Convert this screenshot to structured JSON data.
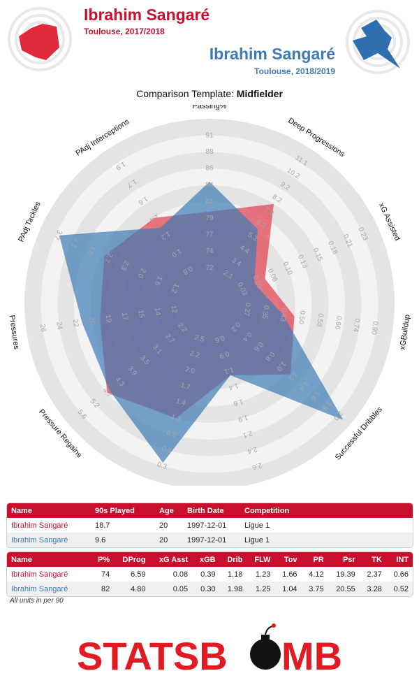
{
  "header": {
    "player1_name": "Ibrahim Sangaré",
    "player1_sub": "Toulouse, 2017/2018",
    "player2_name": "Ibrahim Sangaré",
    "player2_sub": "Toulouse, 2018/2019",
    "template_prefix": "Comparison Template: ",
    "template_name": "Midfielder"
  },
  "colors": {
    "red": "#c8102e",
    "blue": "#3d7ab5",
    "ring": "#e6e6e6",
    "tick_text": "#aaaaaa"
  },
  "chart_data": {
    "type": "radar",
    "axes": [
      {
        "label": "Passing%",
        "ticks": [
          "72",
          "74",
          "77",
          "79",
          "81",
          "84",
          "86",
          "88",
          "91"
        ]
      },
      {
        "label": "Deep Progressions",
        "ticks": [
          "2.1",
          "3.4",
          "4.4",
          "5.3",
          "6.3",
          "7.3",
          "8.2",
          "9.2",
          "10.2",
          "11.1"
        ]
      },
      {
        "label": "xG Assisted",
        "ticks": [
          "0.03",
          "0.05",
          "0.08",
          "0.10",
          "0.13",
          "0.15",
          "0.18",
          "0.21",
          "0.23"
        ]
      },
      {
        "label": "xGBuildup",
        "ticks": [
          "0.27",
          "0.35",
          "0.43",
          "0.50",
          "0.58",
          "0.66",
          "0.74",
          "0.90"
        ]
      },
      {
        "label": "Successful Dribbles",
        "ticks": [
          "0.2",
          "0.4",
          "0.6",
          "0.8",
          "1.0",
          "1.2",
          "1.4",
          "1.6",
          "1.8",
          "2.0"
        ]
      },
      {
        "label": "Fouls Won",
        "ticks": [
          "0.6",
          "0.9",
          "1.1",
          "1.4",
          "1.6",
          "1.9",
          "2.1",
          "2.4",
          "2.6"
        ]
      },
      {
        "label": "Turnovers",
        "ticks": [
          "2.5",
          "2.2",
          "2.0",
          "1.7",
          "1.4",
          "1.1",
          "0.9",
          "0.6",
          "0.3"
        ]
      },
      {
        "label": "Pressure Regains",
        "ticks": [
          "2.2",
          "2.7",
          "3.1",
          "3.5",
          "3.9",
          "4.3",
          "4.7",
          "5.2",
          "5.6"
        ]
      },
      {
        "label": "Pressures",
        "ticks": [
          "12",
          "14",
          "15",
          "17",
          "19",
          "20",
          "22",
          "24",
          "26"
        ]
      },
      {
        "label": "PAdj Tackles",
        "ticks": [
          "1.2",
          "1.6",
          "2.0",
          "2.3",
          "2.7",
          "3.0",
          "3.3",
          "3.7"
        ]
      },
      {
        "label": "PAdj Interceptions",
        "ticks": [
          "0.8",
          "1.0",
          "1.2",
          "1.4",
          "1.6",
          "1.7",
          "1.9"
        ]
      }
    ],
    "series": [
      {
        "name": "Ibrahim Sangaré",
        "color": "#e0404f",
        "fractions": [
          0.44,
          0.6,
          0.25,
          0.4,
          0.53,
          0.33,
          0.6,
          0.7,
          0.55,
          0.58,
          0.5
        ]
      },
      {
        "name": "Ibrahim Sangaré",
        "color": "#3d7ab5",
        "fractions": [
          0.62,
          0.42,
          0.18,
          0.33,
          0.95,
          0.33,
          0.88,
          0.68,
          0.66,
          0.88,
          0.43
        ]
      }
    ]
  },
  "table1": {
    "headers": [
      "Name",
      "90s Played",
      "Age",
      "Birth Date",
      "Competition"
    ],
    "rows": [
      [
        "Ibrahim Sangaré",
        "18.7",
        "20",
        "1997-12-01",
        "Ligue 1"
      ],
      [
        "Ibrahim Sangaré",
        "9.6",
        "20",
        "1997-12-01",
        "Ligue 1"
      ]
    ]
  },
  "table2": {
    "headers": [
      "Name",
      "P%",
      "DProg",
      "xG Asst",
      "xGB",
      "Drib",
      "FLW",
      "Tov",
      "PR",
      "Psr",
      "TK",
      "INT"
    ],
    "rows": [
      [
        "Ibrahim Sangaré",
        "74",
        "6.59",
        "0.08",
        "0.39",
        "1.18",
        "1.23",
        "1.66",
        "4.12",
        "19.39",
        "2.37",
        "0.66"
      ],
      [
        "Ibrahim Sangaré",
        "82",
        "4.80",
        "0.05",
        "0.30",
        "1.98",
        "1.25",
        "1.04",
        "3.75",
        "20.55",
        "3.28",
        "0.52"
      ]
    ]
  },
  "footnote": "All units in per 90",
  "logo": {
    "text_left": "STATSB",
    "text_right": "MB"
  }
}
